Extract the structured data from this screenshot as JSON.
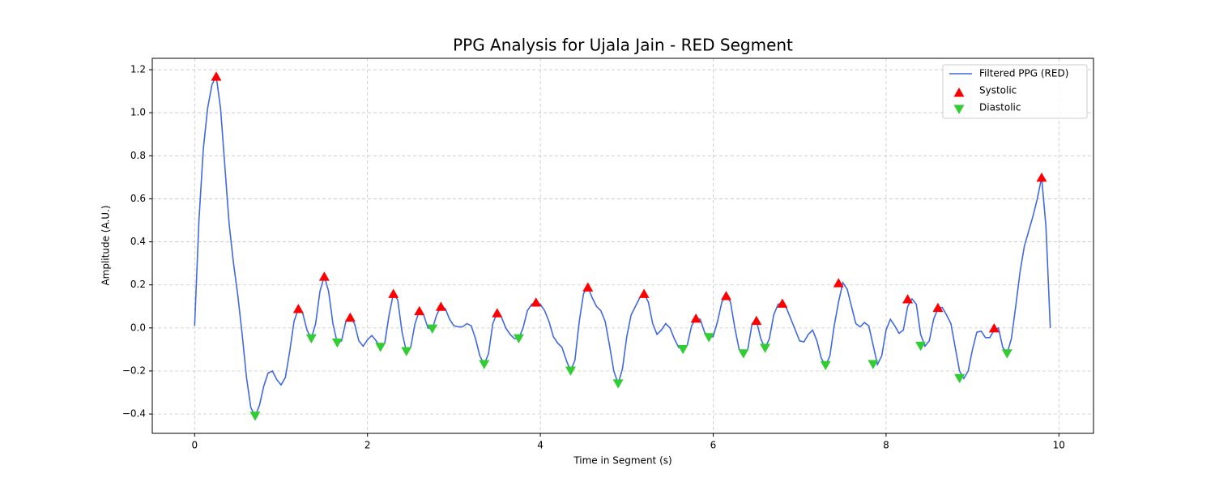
{
  "chart_data": {
    "type": "line",
    "title": "PPG Analysis for Ujala Jain - RED Segment",
    "xlabel": "Time in Segment (s)",
    "ylabel": "Amplitude (A.U.)",
    "xlim": [
      -0.49,
      10.4
    ],
    "ylim": [
      -0.49,
      1.253
    ],
    "xticks": [
      0,
      2,
      4,
      6,
      8,
      10
    ],
    "yticks": [
      {
        "value": -0.4,
        "label": "−0.4"
      },
      {
        "value": -0.2,
        "label": "−0.2"
      },
      {
        "value": 0.0,
        "label": "0.0"
      },
      0.2,
      0.4,
      0.6,
      0.8,
      {
        "value": 1.0,
        "label": "1.0"
      },
      1.2
    ],
    "grid": true,
    "legend": "upper right",
    "series": [
      {
        "name": "Filtered PPG (RED)",
        "type": "line",
        "color": "#4169e1",
        "x": [
          0,
          0.05,
          0.1,
          0.15,
          0.2,
          0.25,
          0.3,
          0.35,
          0.4,
          0.45,
          0.5,
          0.55,
          0.6,
          0.65,
          0.7,
          0.75,
          0.8,
          0.85,
          0.9,
          0.95,
          1.0,
          1.05,
          1.1,
          1.15,
          1.2,
          1.25,
          1.3,
          1.35,
          1.4,
          1.45,
          1.5,
          1.55,
          1.6,
          1.65,
          1.7,
          1.75,
          1.8,
          1.85,
          1.9,
          1.95,
          2.0,
          2.05,
          2.1,
          2.15,
          2.2,
          2.25,
          2.3,
          2.35,
          2.4,
          2.45,
          2.5,
          2.55,
          2.6,
          2.65,
          2.7,
          2.75,
          2.8,
          2.85,
          2.9,
          2.95,
          3.0,
          3.05,
          3.1,
          3.15,
          3.2,
          3.25,
          3.3,
          3.35,
          3.4,
          3.45,
          3.5,
          3.55,
          3.6,
          3.65,
          3.7,
          3.75,
          3.8,
          3.85,
          3.9,
          3.95,
          4.0,
          4.05,
          4.1,
          4.15,
          4.2,
          4.25,
          4.3,
          4.35,
          4.4,
          4.45,
          4.5,
          4.55,
          4.6,
          4.65,
          4.7,
          4.75,
          4.8,
          4.85,
          4.9,
          4.95,
          5.0,
          5.05,
          5.1,
          5.15,
          5.2,
          5.25,
          5.3,
          5.35,
          5.4,
          5.45,
          5.5,
          5.55,
          5.6,
          5.65,
          5.7,
          5.75,
          5.8,
          5.85,
          5.9,
          5.95,
          6.0,
          6.05,
          6.1,
          6.15,
          6.2,
          6.25,
          6.3,
          6.35,
          6.4,
          6.45,
          6.5,
          6.55,
          6.6,
          6.65,
          6.7,
          6.75,
          6.8,
          6.85,
          6.9,
          6.95,
          7.0,
          7.05,
          7.1,
          7.15,
          7.2,
          7.25,
          7.3,
          7.35,
          7.4,
          7.45,
          7.5,
          7.55,
          7.6,
          7.65,
          7.7,
          7.75,
          7.8,
          7.85,
          7.9,
          7.95,
          8.0,
          8.05,
          8.1,
          8.15,
          8.2,
          8.25,
          8.3,
          8.35,
          8.4,
          8.45,
          8.5,
          8.55,
          8.6,
          8.65,
          8.7,
          8.75,
          8.8,
          8.85,
          8.9,
          8.95,
          9.0,
          9.05,
          9.1,
          9.15,
          9.2,
          9.25,
          9.3,
          9.35,
          9.4,
          9.45,
          9.5,
          9.55,
          9.6,
          9.65,
          9.7,
          9.75,
          9.8,
          9.85,
          9.9
        ],
        "values": [
          0.01,
          0.5,
          0.83,
          1.02,
          1.13,
          1.17,
          1.02,
          0.75,
          0.48,
          0.3,
          0.15,
          -0.03,
          -0.23,
          -0.37,
          -0.41,
          -0.36,
          -0.27,
          -0.21,
          -0.2,
          -0.24,
          -0.265,
          -0.23,
          -0.11,
          0.03,
          0.09,
          0.07,
          -0.01,
          -0.05,
          0.02,
          0.17,
          0.24,
          0.17,
          0.02,
          -0.07,
          -0.06,
          0.03,
          0.05,
          0.02,
          -0.06,
          -0.085,
          -0.055,
          -0.035,
          -0.06,
          -0.09,
          -0.07,
          0.06,
          0.16,
          0.13,
          -0.02,
          -0.11,
          -0.09,
          0.02,
          0.08,
          0.06,
          0.0,
          -0.005,
          0.06,
          0.1,
          0.09,
          0.04,
          0.01,
          0.005,
          0.005,
          0.02,
          0.01,
          -0.05,
          -0.13,
          -0.17,
          -0.12,
          0.02,
          0.07,
          0.05,
          0.0,
          -0.03,
          -0.05,
          -0.05,
          0.0,
          0.08,
          0.11,
          0.12,
          0.11,
          0.08,
          0.03,
          -0.04,
          -0.07,
          -0.09,
          -0.15,
          -0.2,
          -0.15,
          0.03,
          0.16,
          0.19,
          0.14,
          0.1,
          0.08,
          0.03,
          -0.08,
          -0.2,
          -0.26,
          -0.19,
          -0.04,
          0.06,
          0.1,
          0.14,
          0.16,
          0.12,
          0.02,
          -0.03,
          -0.01,
          0.02,
          0.0,
          -0.05,
          -0.09,
          -0.1,
          -0.08,
          0.01,
          0.045,
          0.04,
          -0.02,
          -0.045,
          -0.04,
          0.03,
          0.12,
          0.15,
          0.12,
          0.0,
          -0.1,
          -0.12,
          -0.1,
          0.02,
          0.035,
          -0.05,
          -0.095,
          -0.05,
          0.06,
          0.11,
          0.115,
          0.09,
          0.04,
          -0.01,
          -0.06,
          -0.065,
          -0.03,
          -0.01,
          -0.06,
          -0.14,
          -0.175,
          -0.13,
          0.01,
          0.12,
          0.21,
          0.18,
          0.1,
          0.02,
          0.005,
          0.025,
          0.01,
          -0.08,
          -0.17,
          -0.13,
          -0.01,
          0.04,
          0.01,
          -0.025,
          -0.01,
          0.1,
          0.135,
          0.11,
          -0.03,
          -0.085,
          -0.06,
          0.04,
          0.09,
          0.095,
          0.06,
          0.02,
          -0.09,
          -0.2,
          -0.235,
          -0.2,
          -0.1,
          -0.02,
          -0.015,
          -0.045,
          -0.045,
          -0.01,
          0.0,
          -0.09,
          -0.12,
          -0.05,
          0.1,
          0.26,
          0.38,
          0.45,
          0.52,
          0.6,
          0.7,
          0.47,
          0.0
        ]
      },
      {
        "name": "Systolic",
        "type": "scatter",
        "marker": "^",
        "color": "#ff0000",
        "x": [
          0.25,
          1.2,
          1.5,
          1.8,
          2.3,
          2.6,
          2.85,
          3.5,
          3.95,
          4.55,
          5.2,
          5.8,
          6.15,
          6.5,
          6.8,
          7.45,
          8.25,
          8.6,
          9.25,
          9.8
        ],
        "values": [
          1.17,
          0.09,
          0.24,
          0.05,
          0.16,
          0.08,
          0.1,
          0.07,
          0.12,
          0.19,
          0.16,
          0.045,
          0.15,
          0.035,
          0.115,
          0.21,
          0.135,
          0.095,
          0.0,
          0.7
        ]
      },
      {
        "name": "Diastolic",
        "type": "scatter",
        "marker": "v",
        "color": "#32cd32",
        "x": [
          0.7,
          1.35,
          1.65,
          2.15,
          2.45,
          2.75,
          3.35,
          3.75,
          4.35,
          4.9,
          5.65,
          5.95,
          6.35,
          6.6,
          7.3,
          7.85,
          8.4,
          8.85,
          9.4
        ],
        "values": [
          -0.41,
          -0.05,
          -0.07,
          -0.09,
          -0.11,
          -0.005,
          -0.17,
          -0.05,
          -0.2,
          -0.26,
          -0.1,
          -0.045,
          -0.12,
          -0.095,
          -0.175,
          -0.17,
          -0.085,
          -0.235,
          -0.12
        ]
      }
    ]
  }
}
